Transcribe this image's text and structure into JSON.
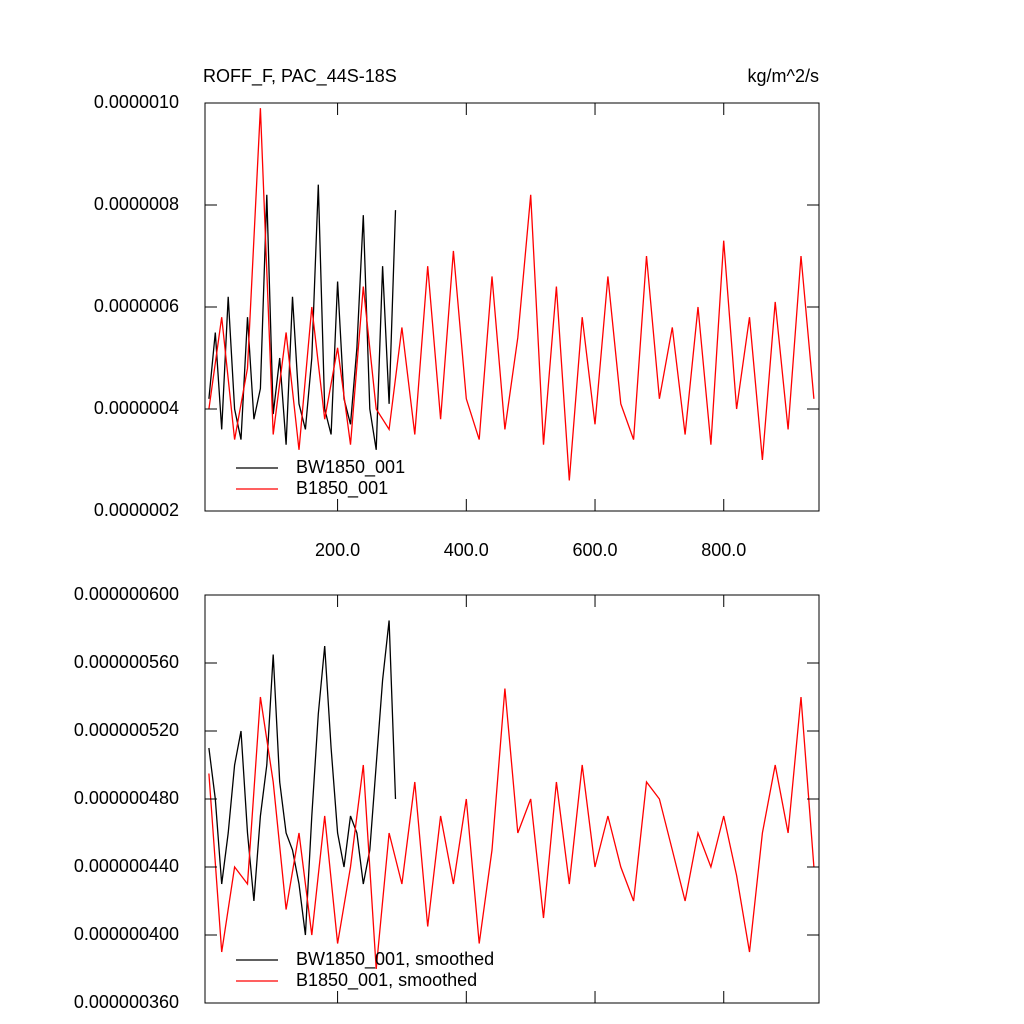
{
  "chart_data": [
    {
      "type": "line",
      "title": "ROFF_F, PAC_44S-18S",
      "units": "kg/m^2/s",
      "xlim": [
        -6,
        948
      ],
      "ylim": [
        2e-07,
        1e-06
      ],
      "xticks": [
        {
          "value": 200,
          "label": "200.0"
        },
        {
          "value": 400,
          "label": "400.0"
        },
        {
          "value": 600,
          "label": "600.0"
        },
        {
          "value": 800,
          "label": "800.0"
        }
      ],
      "yticks": [
        {
          "value": 2e-07,
          "label": "0.0000002"
        },
        {
          "value": 4e-07,
          "label": "0.0000004"
        },
        {
          "value": 6e-07,
          "label": "0.0000006"
        },
        {
          "value": 8e-07,
          "label": "0.0000008"
        },
        {
          "value": 1e-06,
          "label": "0.0000010"
        }
      ],
      "legend": "lower-left",
      "series": [
        {
          "name": "BW1850_001",
          "color": "#000000",
          "x": [
            0,
            10,
            20,
            30,
            40,
            50,
            60,
            70,
            80,
            90,
            100,
            110,
            120,
            130,
            140,
            150,
            160,
            170,
            180,
            190,
            200,
            210,
            220,
            230,
            240,
            250,
            260,
            270,
            280,
            290
          ],
          "values": [
            4.2e-07,
            5.5e-07,
            3.6e-07,
            6.2e-07,
            4e-07,
            3.4e-07,
            5.8e-07,
            3.8e-07,
            4.4e-07,
            8.2e-07,
            3.9e-07,
            5e-07,
            3.3e-07,
            6.2e-07,
            4.1e-07,
            3.6e-07,
            5e-07,
            8.4e-07,
            4e-07,
            3.5e-07,
            6.5e-07,
            4.2e-07,
            3.7e-07,
            5.2e-07,
            7.8e-07,
            4e-07,
            3.2e-07,
            6.8e-07,
            4.1e-07,
            7.9e-07
          ]
        },
        {
          "name": "B1850_001",
          "color": "#ff0000",
          "x": [
            0,
            20,
            40,
            60,
            80,
            100,
            120,
            140,
            160,
            180,
            200,
            220,
            240,
            260,
            280,
            300,
            320,
            340,
            360,
            380,
            400,
            420,
            440,
            460,
            480,
            500,
            520,
            540,
            560,
            580,
            600,
            620,
            640,
            660,
            680,
            700,
            720,
            740,
            760,
            780,
            800,
            820,
            840,
            860,
            880,
            900,
            920,
            940
          ],
          "values": [
            4e-07,
            5.8e-07,
            3.4e-07,
            4.8e-07,
            9.9e-07,
            3.5e-07,
            5.5e-07,
            3.2e-07,
            6e-07,
            3.8e-07,
            5.2e-07,
            3.3e-07,
            6.4e-07,
            4e-07,
            3.6e-07,
            5.6e-07,
            3.5e-07,
            6.8e-07,
            3.8e-07,
            7.1e-07,
            4.2e-07,
            3.4e-07,
            6.6e-07,
            3.6e-07,
            5.4e-07,
            8.2e-07,
            3.3e-07,
            6.4e-07,
            2.6e-07,
            5.8e-07,
            3.7e-07,
            6.6e-07,
            4.1e-07,
            3.4e-07,
            7e-07,
            4.2e-07,
            5.6e-07,
            3.5e-07,
            6e-07,
            3.3e-07,
            7.3e-07,
            4e-07,
            5.8e-07,
            3e-07,
            6.1e-07,
            3.6e-07,
            7e-07,
            4.2e-07
          ]
        }
      ]
    },
    {
      "type": "line",
      "xlim": [
        -6,
        948
      ],
      "ylim": [
        3.6e-07,
        6e-07
      ],
      "xticks": [
        200,
        400,
        600,
        800
      ],
      "yticks": [
        {
          "value": 3.6e-07,
          "label": "0.000000360"
        },
        {
          "value": 4e-07,
          "label": "0.000000400"
        },
        {
          "value": 4.4e-07,
          "label": "0.000000440"
        },
        {
          "value": 4.8e-07,
          "label": "0.000000480"
        },
        {
          "value": 5.2e-07,
          "label": "0.000000520"
        },
        {
          "value": 5.6e-07,
          "label": "0.000000560"
        },
        {
          "value": 6e-07,
          "label": "0.000000600"
        }
      ],
      "legend": "lower-left",
      "series": [
        {
          "name": "BW1850_001, smoothed",
          "color": "#000000",
          "x": [
            0,
            10,
            20,
            30,
            40,
            50,
            60,
            70,
            80,
            90,
            100,
            110,
            120,
            130,
            140,
            150,
            160,
            170,
            180,
            190,
            200,
            210,
            220,
            230,
            240,
            250,
            260,
            270,
            280,
            290
          ],
          "values": [
            5.1e-07,
            4.8e-07,
            4.3e-07,
            4.6e-07,
            5e-07,
            5.2e-07,
            4.6e-07,
            4.2e-07,
            4.7e-07,
            5e-07,
            5.65e-07,
            4.9e-07,
            4.6e-07,
            4.5e-07,
            4.3e-07,
            4e-07,
            4.7e-07,
            5.3e-07,
            5.7e-07,
            5.1e-07,
            4.6e-07,
            4.4e-07,
            4.7e-07,
            4.6e-07,
            4.3e-07,
            4.5e-07,
            5e-07,
            5.5e-07,
            5.85e-07,
            4.8e-07
          ]
        },
        {
          "name": "B1850_001, smoothed",
          "color": "#ff0000",
          "x": [
            0,
            20,
            40,
            60,
            80,
            100,
            120,
            140,
            160,
            180,
            200,
            220,
            240,
            260,
            280,
            300,
            320,
            340,
            360,
            380,
            400,
            420,
            440,
            460,
            480,
            500,
            520,
            540,
            560,
            580,
            600,
            620,
            640,
            660,
            680,
            700,
            720,
            740,
            760,
            780,
            800,
            820,
            840,
            860,
            880,
            900,
            920,
            940
          ],
          "values": [
            4.95e-07,
            3.9e-07,
            4.4e-07,
            4.3e-07,
            5.4e-07,
            4.9e-07,
            4.15e-07,
            4.6e-07,
            4e-07,
            4.7e-07,
            3.95e-07,
            4.4e-07,
            5e-07,
            3.8e-07,
            4.6e-07,
            4.3e-07,
            4.9e-07,
            4.05e-07,
            4.7e-07,
            4.3e-07,
            4.8e-07,
            3.95e-07,
            4.5e-07,
            5.45e-07,
            4.6e-07,
            4.8e-07,
            4.1e-07,
            4.9e-07,
            4.3e-07,
            5e-07,
            4.4e-07,
            4.7e-07,
            4.4e-07,
            4.2e-07,
            4.9e-07,
            4.8e-07,
            4.5e-07,
            4.2e-07,
            4.6e-07,
            4.4e-07,
            4.7e-07,
            4.35e-07,
            3.9e-07,
            4.6e-07,
            5e-07,
            4.6e-07,
            5.4e-07,
            4.4e-07
          ]
        }
      ]
    }
  ]
}
